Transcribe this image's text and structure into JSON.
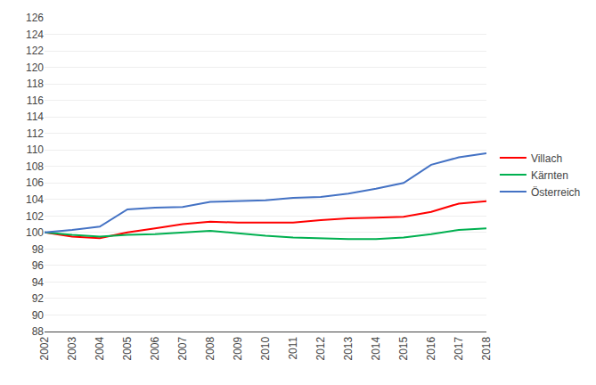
{
  "chart_data": {
    "type": "line",
    "x": [
      2002,
      2003,
      2004,
      2005,
      2006,
      2007,
      2008,
      2009,
      2010,
      2011,
      2012,
      2013,
      2014,
      2015,
      2016,
      2017,
      2018
    ],
    "series": [
      {
        "name": "Villach",
        "color": "#ff0000",
        "values": [
          100.0,
          99.5,
          99.3,
          100.0,
          100.5,
          101.0,
          101.3,
          101.2,
          101.2,
          101.2,
          101.5,
          101.7,
          101.8,
          101.9,
          102.5,
          103.5,
          103.8
        ]
      },
      {
        "name": "Kärnten",
        "color": "#00b050",
        "values": [
          100.0,
          99.7,
          99.5,
          99.7,
          99.8,
          100.0,
          100.2,
          99.9,
          99.6,
          99.4,
          99.3,
          99.2,
          99.2,
          99.4,
          99.8,
          100.3,
          100.5
        ]
      },
      {
        "name": "Österreich",
        "color": "#4472c4",
        "values": [
          100.0,
          100.3,
          100.7,
          102.8,
          103.0,
          103.1,
          103.7,
          103.8,
          103.9,
          104.2,
          104.3,
          104.7,
          105.3,
          106.0,
          108.2,
          109.1,
          109.6
        ]
      }
    ],
    "xlim": [
      2002,
      2018
    ],
    "xticks": [
      2002,
      2003,
      2004,
      2005,
      2006,
      2007,
      2008,
      2009,
      2010,
      2011,
      2012,
      2013,
      2014,
      2015,
      2016,
      2017,
      2018
    ],
    "ylim": [
      88,
      126
    ],
    "yticks": [
      88,
      90,
      92,
      94,
      96,
      98,
      100,
      102,
      104,
      106,
      108,
      110,
      112,
      114,
      116,
      118,
      120,
      122,
      124,
      126
    ],
    "grid": true,
    "legend": "right"
  }
}
